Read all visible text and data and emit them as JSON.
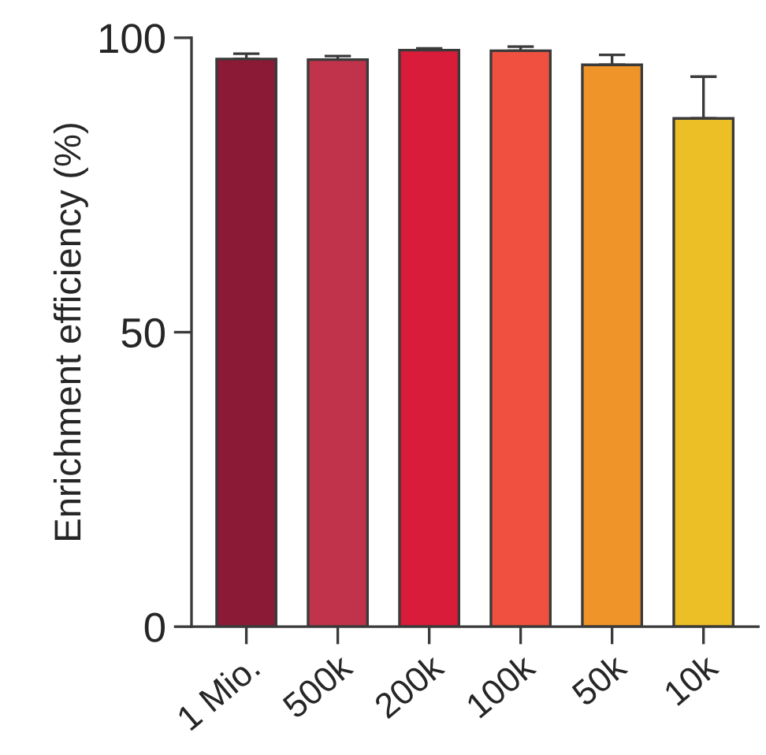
{
  "chart_data": {
    "type": "bar",
    "ylabel": "Enrichment efficiency (%)",
    "categories": [
      "1 Mio.",
      "500k",
      "200k",
      "100k",
      "50k",
      "10k"
    ],
    "values": [
      96.4,
      96.3,
      97.9,
      97.8,
      95.4,
      86.3
    ],
    "errors": [
      [
        96.4,
        97.3
      ],
      [
        96.3,
        96.9
      ],
      [
        97.9,
        98.2
      ],
      [
        97.8,
        98.5
      ],
      [
        95.4,
        97.1
      ],
      [
        86.3,
        93.4
      ]
    ],
    "colors": [
      "#8b1a36",
      "#c0334a",
      "#d91c3a",
      "#ef5040",
      "#ef9428",
      "#ebbf25"
    ],
    "ylim": [
      0,
      100
    ],
    "yticks": [
      0,
      50,
      100
    ],
    "grid": false,
    "legend": false
  }
}
